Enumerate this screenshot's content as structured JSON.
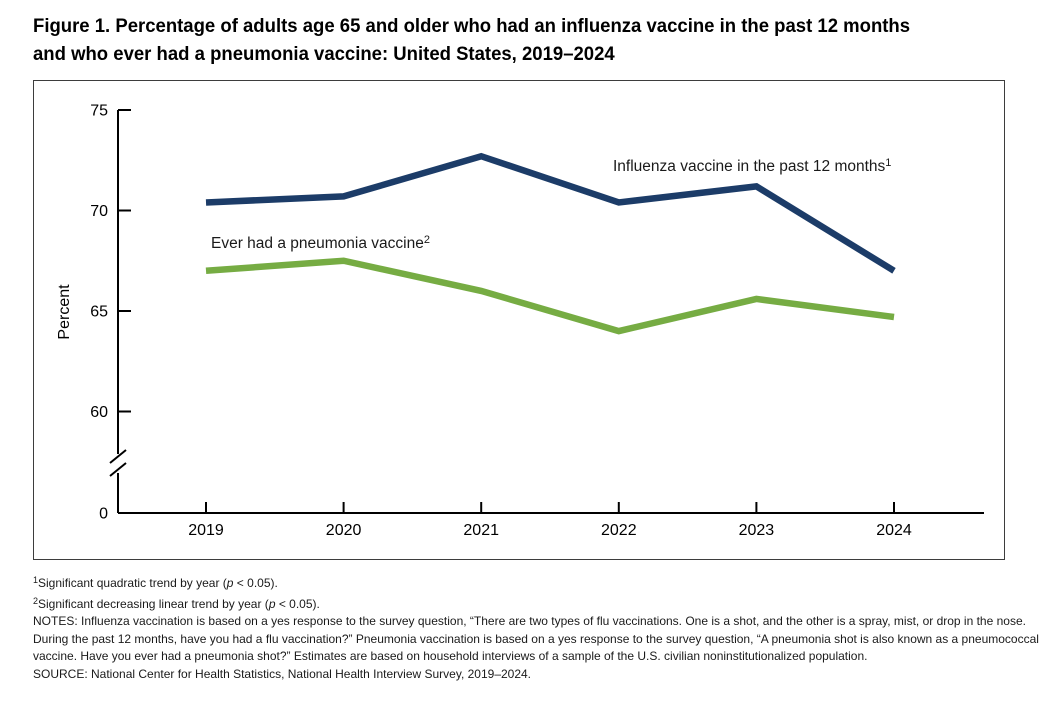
{
  "title": {
    "line1": "Figure 1. Percentage of adults age 65 and older who had an influenza vaccine in the past 12 months",
    "line2": "and who ever had a pneumonia vaccine: United States, 2019–2024"
  },
  "chart_data": {
    "type": "line",
    "categories": [
      "2019",
      "2020",
      "2021",
      "2022",
      "2023",
      "2024"
    ],
    "series": [
      {
        "name": "Influenza vaccine in the past 12 months",
        "label_sup": "1",
        "color": "#1C3C68",
        "values": [
          70.4,
          70.7,
          72.7,
          70.4,
          71.2,
          67.0
        ]
      },
      {
        "name": "Ever had a pneumonia vaccine",
        "label_sup": "2",
        "color": "#76AC43",
        "values": [
          67.0,
          67.5,
          66.0,
          64.0,
          65.6,
          64.7
        ]
      }
    ],
    "xlabel": "",
    "ylabel": "Percent",
    "yticks": [
      75,
      70,
      65,
      60
    ],
    "baseline_label": "0",
    "axis_break": true,
    "ylim": [
      60,
      75
    ],
    "grid": false,
    "legend": "inline-text-labels"
  },
  "footnotes": {
    "fn1": {
      "sup": "1",
      "pre": "Significant quadratic trend by year (",
      "italic": "p",
      "post": " < 0.05)."
    },
    "fn2": {
      "sup": "2",
      "pre": "Significant decreasing linear trend by year (",
      "italic": "p",
      "post": " < 0.05)."
    },
    "notes": "NOTES: Influenza vaccination is based on a yes response to the survey question, “There are two types of flu vaccinations. One is a shot, and the other is a spray, mist, or drop in the nose. During the past 12 months, have you had a flu vaccination?” Pneumonia vaccination is based on a yes response to the survey question, “A pneumonia shot is also known as a pneumococcal vaccine. Have you ever had a pneumonia shot?” Estimates are based on household interviews of a sample of the U.S. civilian noninstitutionalized population.",
    "source": "SOURCE: National Center for Health Statistics, National Health Interview Survey, 2019–2024."
  }
}
